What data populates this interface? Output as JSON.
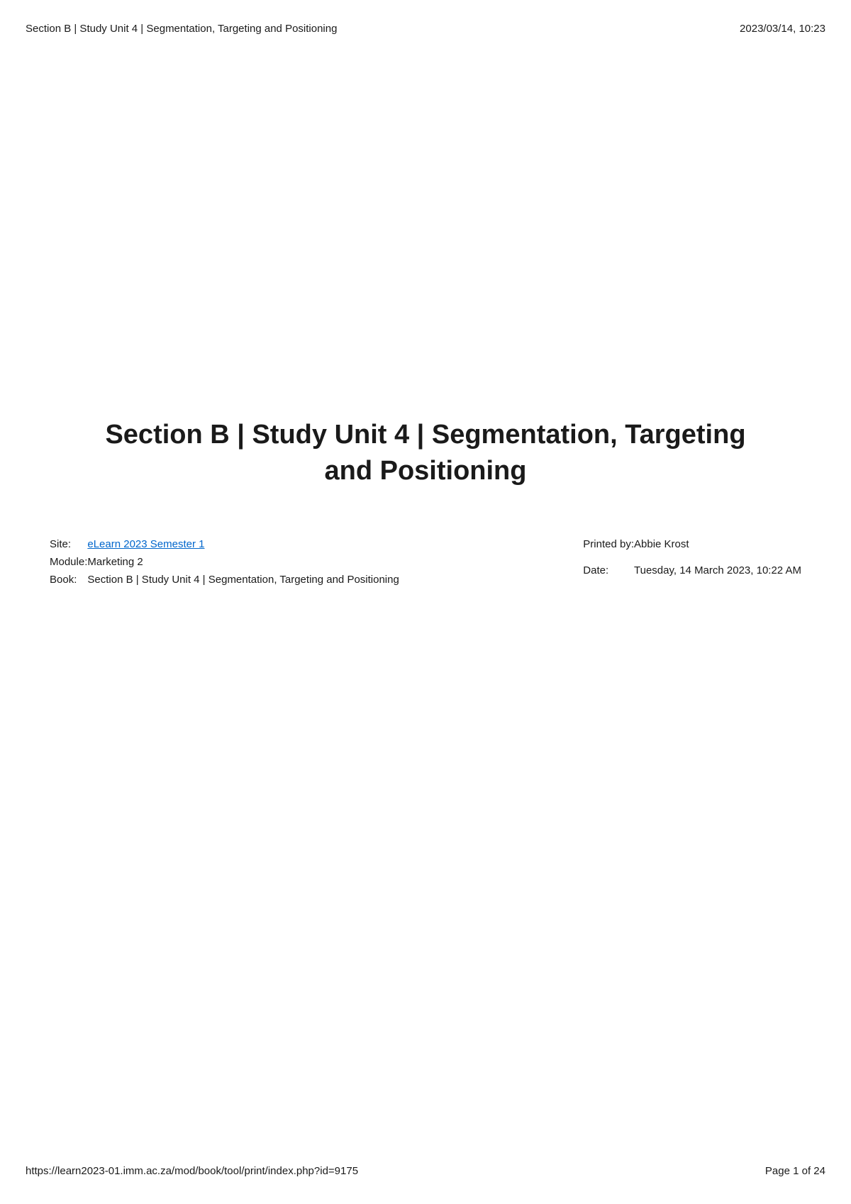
{
  "header": {
    "left": "Section B | Study Unit 4 | Segmentation, Targeting and Positioning",
    "right": "2023/03/14, 10:23"
  },
  "main": {
    "title": "Section B | Study Unit 4 | Segmentation, Targeting and Positioning"
  },
  "metaLeft": {
    "siteLabel": "Site:",
    "siteValue": "eLearn 2023 Semester 1",
    "moduleLabel": "Module:",
    "moduleValue": "Marketing 2",
    "bookLabel": "Book:",
    "bookValue": "Section B | Study Unit 4 | Segmentation, Targeting and Positioning"
  },
  "metaRight": {
    "printedByLabel": "Printed by:",
    "printedByValue": "Abbie Krost",
    "dateLabel": "Date:",
    "dateValue": "Tuesday, 14 March 2023, 10:22 AM"
  },
  "footer": {
    "url": "https://learn2023-01.imm.ac.za/mod/book/tool/print/index.php?id=9175",
    "pageIndicator": "Page 1 of 24"
  },
  "colors": {
    "text": "#1a1a1a",
    "link": "#0066cc",
    "background": "#ffffff"
  }
}
